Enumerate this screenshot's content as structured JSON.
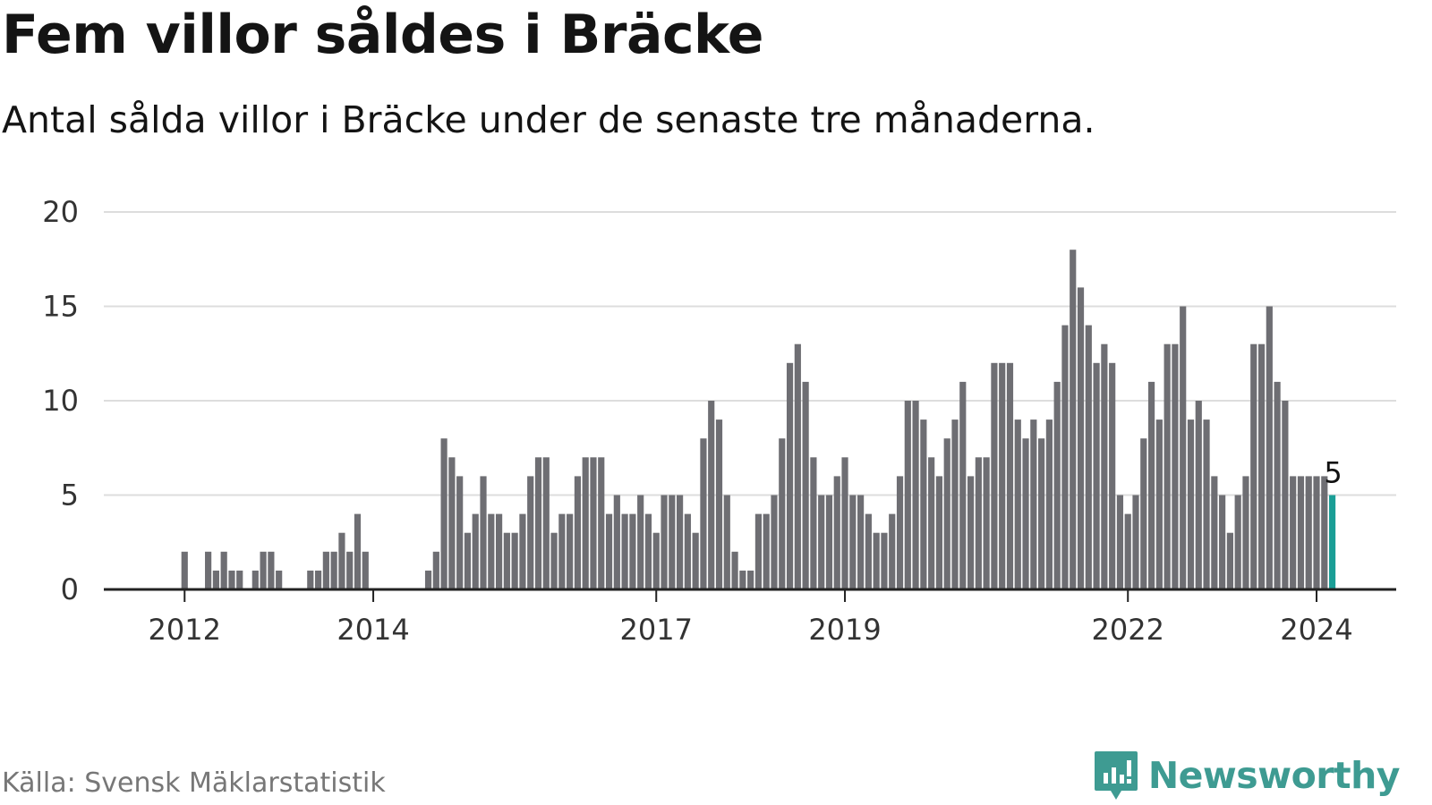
{
  "header": {
    "title": "Fem villor såldes i Bräcke",
    "subtitle": "Antal sålda villor i Bräcke under de senaste tre månaderna."
  },
  "footer": {
    "source": "Källa: Svensk Mäklarstatistik",
    "brand": "Newsworthy"
  },
  "colors": {
    "bar": "#6e6e73",
    "highlight": "#1a9e96",
    "grid": "#dddddd",
    "axis": "#222222",
    "brand": "#3e9b92"
  },
  "chart_data": {
    "type": "bar",
    "title": "Fem villor såldes i Bräcke",
    "xlabel": "",
    "ylabel": "",
    "ylim": [
      0,
      20
    ],
    "yticks": [
      0,
      5,
      10,
      15,
      20
    ],
    "grid": true,
    "start": "2011-05",
    "x_tick_labels": [
      {
        "label": "2012",
        "index": 8
      },
      {
        "label": "2014",
        "index": 32
      },
      {
        "label": "2017",
        "index": 68
      },
      {
        "label": "2019",
        "index": 92
      },
      {
        "label": "2024",
        "index": 152
      },
      {
        "label": "2022",
        "index": 128
      }
    ],
    "values": [
      0,
      0,
      0,
      0,
      0,
      0,
      0,
      0,
      2,
      0,
      0,
      2,
      1,
      2,
      1,
      1,
      0,
      1,
      2,
      2,
      1,
      0,
      0,
      0,
      1,
      1,
      2,
      2,
      3,
      2,
      4,
      2,
      0,
      0,
      0,
      0,
      0,
      0,
      0,
      1,
      2,
      8,
      7,
      6,
      3,
      4,
      6,
      4,
      4,
      3,
      3,
      4,
      6,
      7,
      7,
      3,
      4,
      4,
      6,
      7,
      7,
      7,
      4,
      5,
      4,
      4,
      5,
      4,
      3,
      5,
      5,
      5,
      4,
      3,
      8,
      10,
      9,
      5,
      2,
      1,
      1,
      4,
      4,
      5,
      8,
      12,
      13,
      11,
      7,
      5,
      5,
      6,
      7,
      5,
      5,
      4,
      3,
      3,
      4,
      6,
      10,
      10,
      9,
      7,
      6,
      8,
      9,
      11,
      6,
      7,
      7,
      12,
      12,
      12,
      9,
      8,
      9,
      8,
      9,
      11,
      14,
      18,
      16,
      14,
      12,
      13,
      12,
      5,
      4,
      5,
      8,
      11,
      9,
      13,
      13,
      15,
      9,
      10,
      9,
      6,
      5,
      3,
      5,
      6,
      13,
      13,
      15,
      11,
      10,
      6,
      6,
      6,
      6,
      6,
      5
    ],
    "highlight_last": true,
    "last_value_label": "5"
  }
}
